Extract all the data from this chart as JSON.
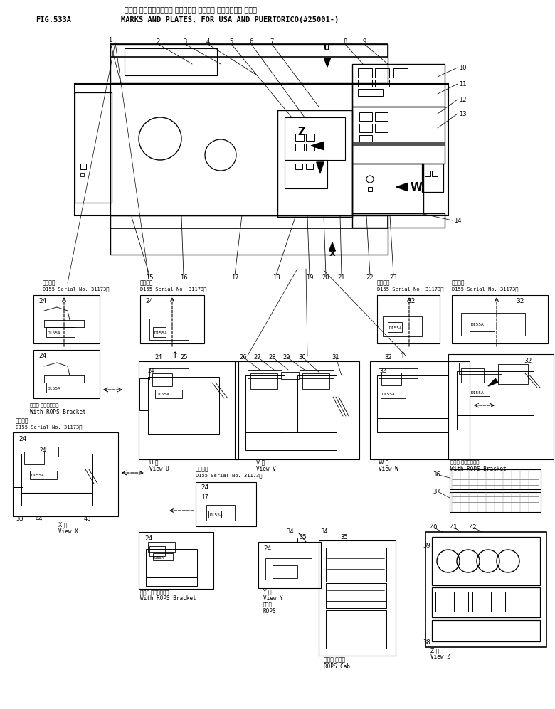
{
  "title_jp": "マーク オヨビビプレート （アメリカ オヨビビ プエルトリコ ヨウ）",
  "fig_label": "FIG.533A",
  "title_en": "MARKS AND PLATES, FOR USA AND PUERTORICO(#25001-)",
  "bg_color": "#ffffff",
  "lc": "#000000",
  "tc": "#000000",
  "dpi": 100,
  "fw": 7.8,
  "fh": 9.97
}
